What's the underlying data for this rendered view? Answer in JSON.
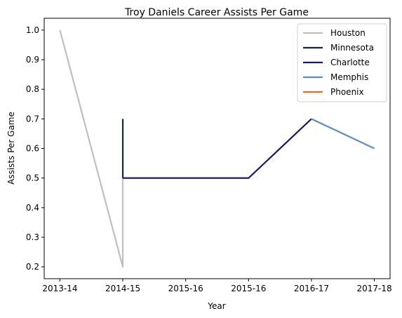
{
  "chart_data": {
    "type": "line",
    "title": "Troy Daniels Career Assists Per Game",
    "xlabel": "Year",
    "ylabel": "Assists Per Game",
    "x_ticks": [
      "2013-14",
      "2014-15",
      "2015-16",
      "2015-16",
      "2016-17",
      "2017-18"
    ],
    "xlim": [
      -0.25,
      5.25
    ],
    "ylim": [
      0.16,
      1.04
    ],
    "y_ticks": [
      0.2,
      0.3,
      0.4,
      0.5,
      0.6,
      0.7,
      0.8,
      0.9,
      1.0
    ],
    "grid": false,
    "legend_position": "top-right",
    "series": [
      {
        "name": "Houston",
        "color": "#bfbfbf",
        "points": [
          [
            0,
            1.0
          ],
          [
            1,
            0.2
          ],
          [
            1,
            0.5
          ]
        ]
      },
      {
        "name": "Minnesota",
        "color": "#0f2a36",
        "points": [
          [
            1,
            0.7
          ],
          [
            1,
            0.5
          ]
        ]
      },
      {
        "name": "Charlotte",
        "color": "#1f1a5c",
        "points": [
          [
            1,
            0.5
          ],
          [
            2,
            0.5
          ],
          [
            3,
            0.5
          ],
          [
            4,
            0.7
          ]
        ]
      },
      {
        "name": "Memphis",
        "color": "#5d8bbf",
        "points": [
          [
            4,
            0.7
          ],
          [
            5,
            0.6
          ]
        ]
      },
      {
        "name": "Phoenix",
        "color": "#e5682f",
        "points": []
      }
    ]
  }
}
